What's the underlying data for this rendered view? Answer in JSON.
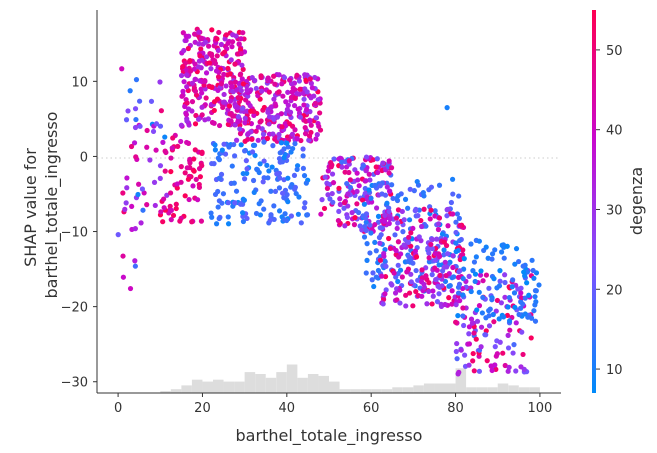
{
  "chart_data": {
    "type": "scatter",
    "title": "",
    "xlabel": "barthel_totale_ingresso",
    "ylabel": [
      "SHAP value for",
      "barthel_totale_ingresso"
    ],
    "xlim": [
      -5,
      105
    ],
    "ylim": [
      -31.5,
      19.5
    ],
    "xticks": [
      0,
      20,
      40,
      60,
      80,
      100
    ],
    "xtick_labels": [
      "0",
      "20",
      "40",
      "60",
      "80",
      "100"
    ],
    "yticks": [
      10,
      0,
      -10,
      -20,
      -30
    ],
    "ytick_labels": [
      "10",
      "0",
      "−10",
      "−20",
      "−30"
    ],
    "zero_line": true,
    "grid": false,
    "color_by": {
      "label": "degenza",
      "min": 7,
      "max": 55,
      "ticks": [
        10,
        20,
        30,
        40,
        50
      ],
      "tick_labels": [
        "10",
        "20",
        "30",
        "40",
        "50"
      ],
      "colormap": [
        "#008bfa",
        "#7c52ff",
        "#c809ce",
        "#ff0052"
      ]
    },
    "histogram": {
      "bin_width": 2.5,
      "bin_starts": [
        10,
        12.5,
        15,
        17.5,
        20,
        22.5,
        25,
        27.5,
        30,
        32.5,
        35,
        37.5,
        40,
        42.5,
        45,
        47.5,
        50,
        52.5,
        55,
        57.5,
        60,
        62.5,
        65,
        67.5,
        70,
        72.5,
        75,
        77.5,
        80,
        82.5,
        85,
        87.5,
        90,
        92.5,
        95,
        97.5
      ],
      "relative_heights": [
        0.05,
        0.1,
        0.2,
        0.35,
        0.3,
        0.35,
        0.3,
        0.3,
        0.55,
        0.5,
        0.4,
        0.55,
        0.75,
        0.4,
        0.5,
        0.45,
        0.3,
        0.1,
        0.1,
        0.1,
        0.1,
        0.1,
        0.15,
        0.15,
        0.2,
        0.25,
        0.25,
        0.25,
        0.65,
        0.15,
        0.15,
        0.15,
        0.25,
        0.2,
        0.15,
        0.15
      ]
    },
    "point_clusters": [
      {
        "x": [
          0,
          5
        ],
        "y": [
          -21,
          16
        ],
        "degenza": [
          8,
          55
        ],
        "n": 22
      },
      {
        "x": [
          2,
          12
        ],
        "y": [
          -9,
          10
        ],
        "degenza": [
          8,
          50
        ],
        "n": 35
      },
      {
        "x": [
          10,
          20
        ],
        "y": [
          -9,
          3
        ],
        "degenza": [
          40,
          55
        ],
        "n": 70
      },
      {
        "x": [
          15,
          30
        ],
        "y": [
          4,
          17
        ],
        "degenza": [
          30,
          55
        ],
        "n": 260
      },
      {
        "x": [
          28,
          48
        ],
        "y": [
          2,
          11
        ],
        "degenza": [
          25,
          55
        ],
        "n": 260
      },
      {
        "x": [
          22,
          45
        ],
        "y": [
          -9,
          2
        ],
        "degenza": [
          8,
          20
        ],
        "n": 160
      },
      {
        "x": [
          48,
          65
        ],
        "y": [
          -10,
          0
        ],
        "degenza": [
          15,
          55
        ],
        "n": 170
      },
      {
        "x": [
          58,
          82
        ],
        "y": [
          -18,
          -3
        ],
        "degenza": [
          8,
          20
        ],
        "n": 160
      },
      {
        "x": [
          62,
          82
        ],
        "y": [
          -20,
          -7
        ],
        "degenza": [
          20,
          55
        ],
        "n": 200
      },
      {
        "x": [
          80,
          98
        ],
        "y": [
          -29,
          -15
        ],
        "degenza": [
          15,
          55
        ],
        "n": 130
      },
      {
        "x": [
          80,
          100
        ],
        "y": [
          -22,
          -11
        ],
        "degenza": [
          7,
          15
        ],
        "n": 90
      },
      {
        "x": [
          78,
          78
        ],
        "y": [
          6.5,
          6.5
        ],
        "degenza": [
          10,
          10
        ],
        "n": 1
      }
    ]
  }
}
